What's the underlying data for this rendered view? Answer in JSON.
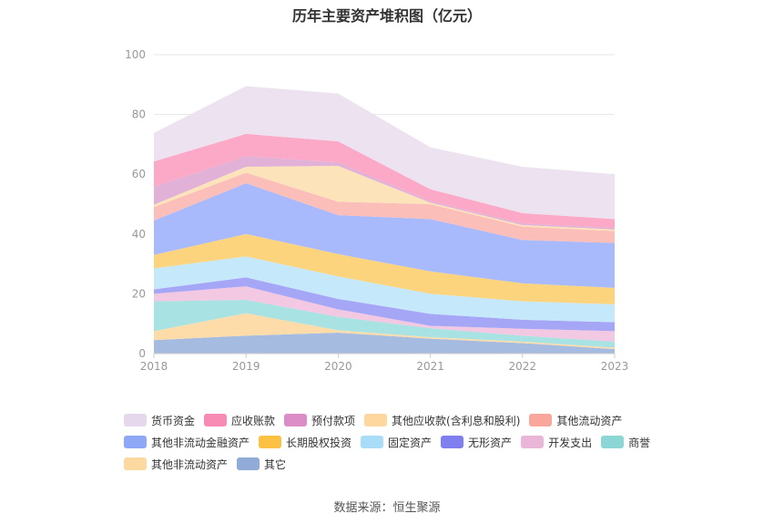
{
  "chart_data": {
    "type": "area",
    "stacked": true,
    "title": "历年主要资产堆积图（亿元）",
    "x": [
      "2018",
      "2019",
      "2020",
      "2021",
      "2022",
      "2023"
    ],
    "ylim": [
      0,
      100
    ],
    "yticks": [
      "0",
      "20",
      "40",
      "60",
      "80",
      "100"
    ],
    "grid": true,
    "legend_position": "bottom",
    "series": [
      {
        "name": "其它",
        "color": "#a5bbe0",
        "values": [
          4.5,
          6.0,
          7.0,
          5.0,
          3.5,
          1.5
        ]
      },
      {
        "name": "其他非流动资产",
        "color": "#fddcaa",
        "values": [
          3.0,
          7.5,
          0.8,
          0.5,
          0.5,
          0.5
        ]
      },
      {
        "name": "商誉",
        "color": "#a9e2e2",
        "values": [
          10.0,
          4.5,
          4.5,
          3.0,
          2.0,
          2.0
        ]
      },
      {
        "name": "开发支出",
        "color": "#f2c8e2",
        "values": [
          2.5,
          4.5,
          2.5,
          0.8,
          2.3,
          3.5
        ]
      },
      {
        "name": "无形资产",
        "color": "#a6a6f6",
        "values": [
          1.5,
          3.0,
          3.5,
          4.0,
          3.0,
          3.0
        ]
      },
      {
        "name": "固定资产",
        "color": "#c6e8fb",
        "values": [
          7.0,
          7.0,
          7.5,
          6.7,
          6.2,
          6.0
        ]
      },
      {
        "name": "长期股权投资",
        "color": "#fdd47e",
        "values": [
          4.5,
          7.5,
          7.5,
          7.5,
          6.0,
          5.5
        ]
      },
      {
        "name": "其他非流动金融资产",
        "color": "#a8b9fc",
        "values": [
          11.5,
          17.0,
          13.0,
          17.5,
          14.5,
          15.0
        ]
      },
      {
        "name": "其他流动资产",
        "color": "#fcbeb8",
        "values": [
          4.5,
          3.5,
          4.5,
          5.0,
          4.5,
          4.0
        ]
      },
      {
        "name": "其他应收款(含利息和股利)",
        "color": "#fde3ba",
        "values": [
          0.8,
          2.0,
          12.0,
          0.5,
          0.5,
          0.5
        ]
      },
      {
        "name": "预付款项",
        "color": "#e1b1d8",
        "values": [
          6.0,
          3.5,
          1.2,
          0.5,
          0.5,
          0.5
        ]
      },
      {
        "name": "应收账款",
        "color": "#fba9c6",
        "values": [
          8.5,
          7.5,
          7.0,
          4.0,
          3.5,
          3.0
        ]
      },
      {
        "name": "货币资金",
        "color": "#ede3f0",
        "values": [
          9.5,
          16.0,
          16.0,
          14.0,
          15.5,
          15.0
        ]
      }
    ]
  },
  "legend": {
    "rows": [
      [
        {
          "name": "货币资金",
          "color": "#e6d8ec"
        },
        {
          "name": "应收账款",
          "color": "#f78bb3"
        },
        {
          "name": "预付款项",
          "color": "#dc8cc6"
        },
        {
          "name": "其他应收款(含利息和股利)",
          "color": "#fdd79d"
        },
        {
          "name": "其他流动资产",
          "color": "#f9a69c"
        }
      ],
      [
        {
          "name": "其他非流动金融资产",
          "color": "#8ea8f7"
        },
        {
          "name": "长期股权投资",
          "color": "#fcc042"
        },
        {
          "name": "固定资产",
          "color": "#a8dcf7"
        },
        {
          "name": "无形资产",
          "color": "#7f7ff0"
        },
        {
          "name": "开发支出",
          "color": "#e9b6d8"
        },
        {
          "name": "商誉",
          "color": "#8cd6d6"
        }
      ],
      [
        {
          "name": "其他非流动资产",
          "color": "#fdd9a2"
        },
        {
          "name": "其它",
          "color": "#8fabd6"
        }
      ]
    ]
  },
  "source_note": "数据来源：恒生聚源"
}
